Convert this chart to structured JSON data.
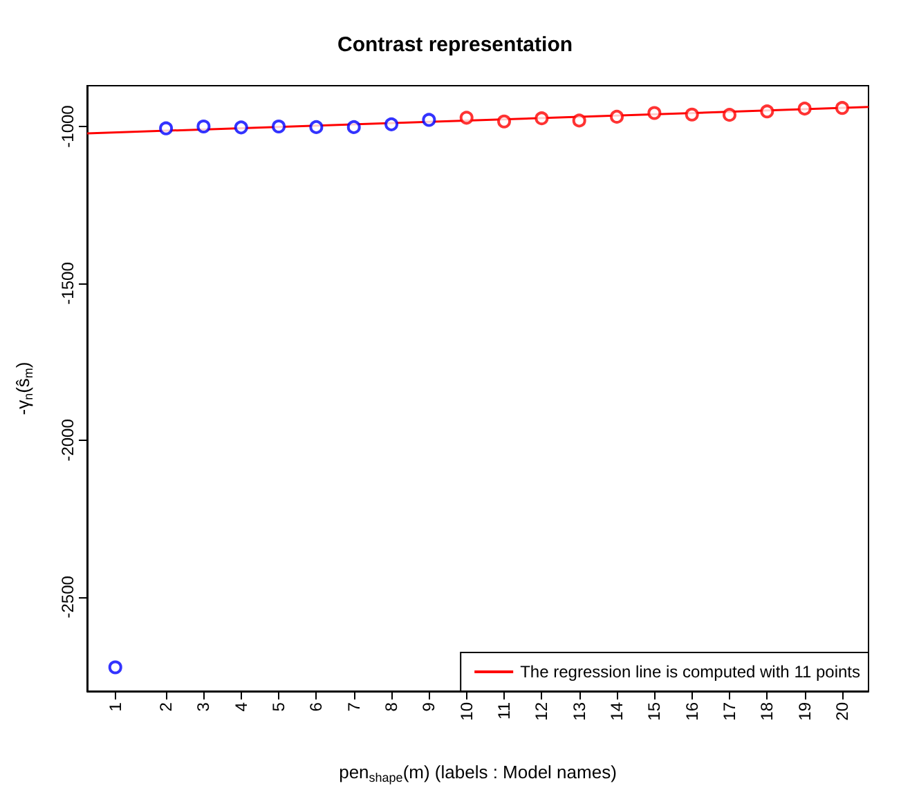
{
  "chart_data": {
    "type": "scatter",
    "title": "Contrast representation",
    "xlabel": "pen$_{shape}$(m) (labels : Model names)",
    "ylabel": "-γ$_{n}$(ŝ$_{m}$)",
    "series": [
      {
        "color": "#0000ff",
        "marker": "circle",
        "x": [
          0.65,
          2,
          3,
          4,
          5,
          6,
          7,
          8,
          9
        ],
        "values": [
          -2724,
          -1006,
          -1000,
          -1003,
          -1000,
          -1002,
          -1002,
          -993,
          -979
        ]
      },
      {
        "color": "#ff0000",
        "marker": "circle",
        "x": [
          10,
          11,
          12,
          13,
          14,
          15,
          16,
          17,
          18,
          19,
          20
        ],
        "values": [
          -972,
          -984,
          -974,
          -981,
          -969,
          -957,
          -962,
          -963,
          -952,
          -943,
          -941
        ]
      },
      {
        "type": "line",
        "name": "The regression line is computed with 11 points",
        "color": "#ff0000",
        "x": [
          -0.1,
          20.7
        ],
        "values": [
          -1022,
          -938
        ]
      }
    ],
    "xlim": [
      -0.1,
      20.7
    ],
    "xticks": [
      {
        "value": 0.65,
        "label": "1"
      },
      2,
      3,
      4,
      5,
      6,
      7,
      8,
      9,
      10,
      11,
      12,
      13,
      14,
      15,
      16,
      17,
      18,
      19,
      20
    ],
    "ylim": [
      -2800,
      -870
    ],
    "yticks": [
      -2500,
      -2000,
      -1500,
      -1000
    ],
    "grid": false,
    "legend": "bottom right"
  }
}
